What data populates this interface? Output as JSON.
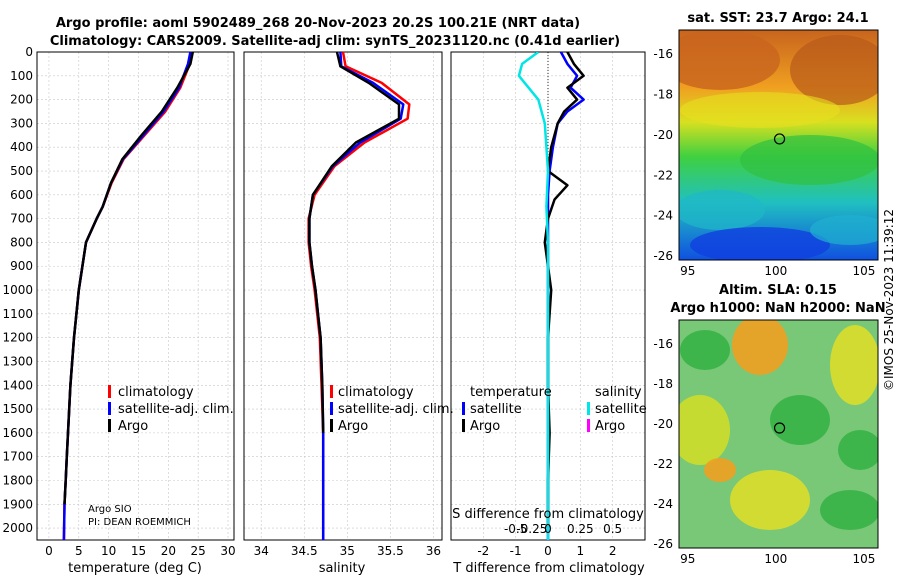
{
  "titles": {
    "line1": "Argo profile: aoml 5902489_268 20-Nov-2023 20.2S 100.21E (NRT data)",
    "line2": "Climatology: CARS2009. Satellite-adj clim: synTS_20231120.nc (0.41d earlier)",
    "sst": "sat. SST: 23.7 Argo: 24.1",
    "sla1": "Altim. SLA: 0.15",
    "sla2": "Argo h1000: NaN h2000: NaN",
    "side": "©IMOS 25-Nov-2023 11:39:12"
  },
  "credits": {
    "line1": "Argo SIO",
    "line2": "PI: DEAN ROEMMICH"
  },
  "colors": {
    "climatology": "#ff0000",
    "satellite": "#0000ff",
    "argo": "#000000",
    "sat_diff": "#00e5e5",
    "argo_sal_diff": "#ff00ff"
  },
  "chart_data": [
    {
      "type": "line",
      "id": "temperature",
      "xlabel": "temperature (deg C)",
      "ylabel": "",
      "xlim": [
        -2,
        31
      ],
      "ylim": [
        2050,
        0
      ],
      "xticks": [
        0,
        5,
        10,
        15,
        20,
        25,
        30
      ],
      "yticks": [
        0,
        100,
        200,
        300,
        400,
        500,
        600,
        700,
        800,
        900,
        1000,
        1100,
        1200,
        1300,
        1400,
        1500,
        1600,
        1700,
        1800,
        1900,
        2000
      ],
      "legend": [
        "climatology",
        "satellite-adj. clim.",
        "Argo"
      ],
      "series": [
        {
          "name": "climatology",
          "color": "#ff0000",
          "x": [
            24.0,
            23.6,
            22.0,
            19.5,
            16.0,
            12.5,
            10.5,
            9.0,
            8.0,
            6.2,
            5.6,
            5.0,
            4.6,
            4.2,
            3.9,
            3.6,
            3.4,
            3.2,
            3.0,
            2.8,
            2.6,
            2.5
          ],
          "y": [
            0,
            50,
            150,
            250,
            350,
            450,
            550,
            650,
            700,
            800,
            900,
            1000,
            1100,
            1200,
            1300,
            1400,
            1500,
            1600,
            1700,
            1800,
            1900,
            2050
          ]
        },
        {
          "name": "satellite-adj. clim.",
          "color": "#0000ff",
          "x": [
            23.7,
            23.3,
            21.8,
            19.2,
            15.8,
            12.4,
            10.4,
            9.0,
            8.0,
            6.2,
            5.6,
            5.0,
            4.6,
            4.2,
            3.9,
            3.6,
            3.4,
            3.2,
            3.0,
            2.8,
            2.6,
            2.5
          ],
          "y": [
            0,
            50,
            150,
            250,
            350,
            450,
            550,
            650,
            700,
            800,
            900,
            1000,
            1100,
            1200,
            1300,
            1400,
            1500,
            1600,
            1700,
            1800,
            1900,
            2050
          ]
        },
        {
          "name": "Argo",
          "color": "#000000",
          "x": [
            24.1,
            23.7,
            21.5,
            18.9,
            15.5,
            12.3,
            10.4,
            9.0,
            8.0,
            6.2,
            5.6,
            5.0,
            4.6,
            4.2,
            3.9,
            3.6,
            3.4,
            3.2,
            3.0,
            2.8,
            2.6
          ],
          "y": [
            0,
            50,
            150,
            250,
            350,
            450,
            550,
            650,
            700,
            800,
            900,
            1000,
            1100,
            1200,
            1300,
            1400,
            1500,
            1600,
            1700,
            1800,
            1900
          ]
        }
      ]
    },
    {
      "type": "line",
      "id": "salinity",
      "xlabel": "salinity",
      "xlim": [
        33.8,
        36.1
      ],
      "ylim": [
        2050,
        0
      ],
      "xticks": [
        34,
        34.5,
        35,
        35.5,
        36
      ],
      "legend": [
        "climatology",
        "satellite-adj. clim.",
        "Argo"
      ],
      "series": [
        {
          "name": "climatology",
          "color": "#ff0000",
          "x": [
            34.95,
            34.98,
            35.4,
            35.72,
            35.7,
            35.2,
            34.85,
            34.62,
            34.55,
            34.55,
            34.58,
            34.62,
            34.65,
            34.68,
            34.7,
            34.72,
            34.72
          ],
          "y": [
            0,
            60,
            130,
            220,
            280,
            380,
            480,
            600,
            700,
            800,
            900,
            1000,
            1100,
            1200,
            1400,
            1600,
            2050
          ]
        },
        {
          "name": "satellite-adj. clim.",
          "color": "#0000ff",
          "x": [
            34.92,
            34.93,
            35.3,
            35.65,
            35.62,
            35.15,
            34.83,
            34.6,
            34.56,
            34.56,
            34.59,
            34.63,
            34.66,
            34.69,
            34.71,
            34.72,
            34.72
          ],
          "y": [
            0,
            60,
            130,
            220,
            280,
            380,
            480,
            600,
            700,
            800,
            900,
            1000,
            1100,
            1200,
            1400,
            1600,
            2050
          ]
        },
        {
          "name": "Argo",
          "color": "#000000",
          "x": [
            34.88,
            34.92,
            35.25,
            35.6,
            35.6,
            35.1,
            34.82,
            34.6,
            34.56,
            34.56,
            34.59,
            34.63,
            34.66,
            34.69,
            34.71,
            34.72
          ],
          "y": [
            0,
            60,
            130,
            220,
            280,
            380,
            480,
            600,
            700,
            800,
            900,
            1000,
            1100,
            1200,
            1400,
            1600
          ]
        }
      ]
    },
    {
      "type": "line",
      "id": "difference",
      "xlabel": "T difference from climatology",
      "xlabel_top": "S difference from climatology",
      "xlim": [
        -3,
        3
      ],
      "ylim": [
        2050,
        0
      ],
      "xticks": [
        -2,
        -1,
        0,
        1,
        2
      ],
      "s_ticks": [
        "-0.5",
        "-0.25",
        "0",
        "0.25",
        "0.5"
      ],
      "legend_temperature_title": "temperature",
      "legend_salinity_title": "salinity",
      "legend_temperature": [
        "satellite",
        "Argo"
      ],
      "legend_salinity": [
        "satellite",
        "Argo"
      ],
      "series": [
        {
          "name": "T satellite",
          "color": "#0000ff",
          "x": [
            0.4,
            0.6,
            0.9,
            0.7,
            1.1,
            0.6,
            0.3,
            0.15,
            0.05,
            0.0,
            0.0,
            0.0,
            0.0,
            0.0,
            0.0,
            0.0
          ],
          "y": [
            0,
            50,
            100,
            150,
            200,
            250,
            300,
            400,
            500,
            600,
            700,
            800,
            1000,
            1300,
            1700,
            2050
          ]
        },
        {
          "name": "T Argo",
          "color": "#000000",
          "x": [
            0.6,
            0.8,
            1.1,
            0.6,
            0.9,
            0.5,
            0.3,
            0.1,
            0.0,
            0.6,
            0.2,
            0.0,
            -0.1,
            0.0,
            0.1,
            0.0,
            0.0,
            0.05,
            0.0,
            0.0
          ],
          "y": [
            0,
            50,
            100,
            150,
            200,
            250,
            300,
            400,
            500,
            560,
            620,
            700,
            800,
            900,
            1000,
            1200,
            1400,
            1600,
            1800,
            2000
          ]
        },
        {
          "name": "S satellite",
          "color": "#00e5e5",
          "x": [
            -0.3,
            -0.8,
            -0.9,
            -0.6,
            -0.3,
            -0.1,
            -0.05,
            0.0,
            -0.05,
            0.0,
            0.0,
            0.0,
            0.0,
            0.0
          ],
          "y": [
            0,
            50,
            100,
            150,
            200,
            300,
            400,
            500,
            650,
            800,
            1000,
            1400,
            1700,
            2050
          ]
        }
      ]
    },
    {
      "type": "heatmap",
      "id": "sst_map",
      "title": "sat. SST: 23.7 Argo: 24.1",
      "xlim": [
        94.5,
        105.8
      ],
      "ylim": [
        -26.2,
        -14.8
      ],
      "xticks": [
        95,
        100,
        105
      ],
      "yticks": [
        -16,
        -18,
        -20,
        -22,
        -24,
        -26
      ],
      "argo_position": {
        "lon": 100.21,
        "lat": -20.2
      }
    },
    {
      "type": "heatmap",
      "id": "sla_map",
      "title": "Altim. SLA: 0.15",
      "xlim": [
        94.5,
        105.8
      ],
      "ylim": [
        -26.2,
        -14.8
      ],
      "xticks": [
        95,
        100,
        105
      ],
      "yticks": [
        -16,
        -18,
        -20,
        -22,
        -24,
        -26
      ],
      "argo_position": {
        "lon": 100.21,
        "lat": -20.2
      }
    }
  ]
}
